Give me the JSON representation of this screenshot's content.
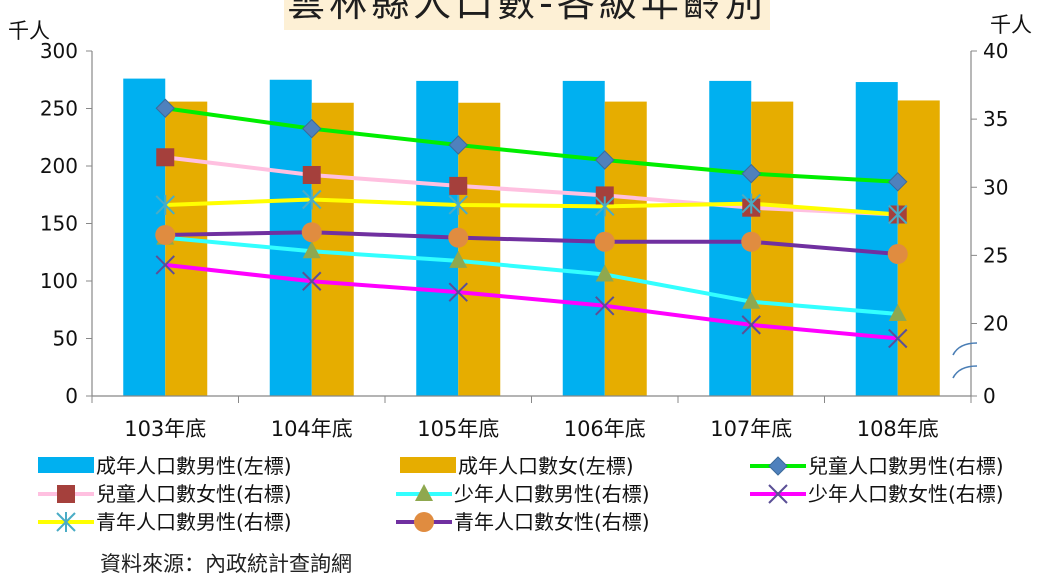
{
  "page": {
    "title": "雲林縣人口數-各級年齡別",
    "source": "資料來源：內政統計查詢網"
  },
  "chart_data": {
    "type": "bar+line",
    "categories": [
      "103年底",
      "104年底",
      "105年底",
      "106年底",
      "107年底",
      "108年底"
    ],
    "left_axis": {
      "unit": "千人",
      "ylim": [
        0,
        300
      ],
      "ticks": [
        0,
        50,
        100,
        150,
        200,
        250,
        300
      ]
    },
    "right_axis": {
      "unit": "千人",
      "ylim": [
        15,
        40
      ],
      "ticks": [
        0,
        20,
        25,
        30,
        35,
        40
      ],
      "axis_break": true
    },
    "bars": [
      {
        "name": "成年人口數男性(左標)",
        "color": "#00b0f0",
        "values": [
          276,
          275,
          274,
          274,
          274,
          273
        ]
      },
      {
        "name": "成年人口數女(左標)",
        "color": "#e6ad00",
        "values": [
          256,
          255,
          255,
          256,
          256,
          257
        ]
      }
    ],
    "lines": [
      {
        "name": "兒童人口數男性(右標)",
        "color": "#00ee00",
        "marker": "diamond",
        "marker_color": "#4f81bd",
        "values": [
          35.8,
          34.3,
          33.1,
          32.0,
          31.0,
          30.4
        ]
      },
      {
        "name": "兒童人口數女性(右標)",
        "color": "#ffc0e0",
        "marker": "square",
        "marker_color": "#a5403c",
        "values": [
          32.2,
          30.9,
          30.1,
          29.4,
          28.5,
          28.0
        ]
      },
      {
        "name": "少年人口數男性(右標)",
        "color": "#33ffff",
        "marker": "triangle",
        "marker_color": "#8fa84f",
        "values": [
          26.3,
          25.3,
          24.6,
          23.6,
          21.6,
          20.7
        ]
      },
      {
        "name": "少年人口數女性(右標)",
        "color": "#ff00ff",
        "marker": "x",
        "marker_color": "#5b5096",
        "values": [
          24.3,
          23.1,
          22.3,
          21.3,
          19.9,
          18.9
        ]
      },
      {
        "name": "青年人口數男性(右標)",
        "color": "#ffff00",
        "marker": "asterisk",
        "marker_color": "#4aacc6",
        "values": [
          28.7,
          29.1,
          28.7,
          28.6,
          28.8,
          28.0
        ]
      },
      {
        "name": "青年人口數女性(右標)",
        "color": "#7030a0",
        "marker": "circle",
        "marker_color": "#e08c40",
        "values": [
          26.5,
          26.7,
          26.3,
          26.0,
          26.0,
          25.1
        ]
      }
    ]
  }
}
